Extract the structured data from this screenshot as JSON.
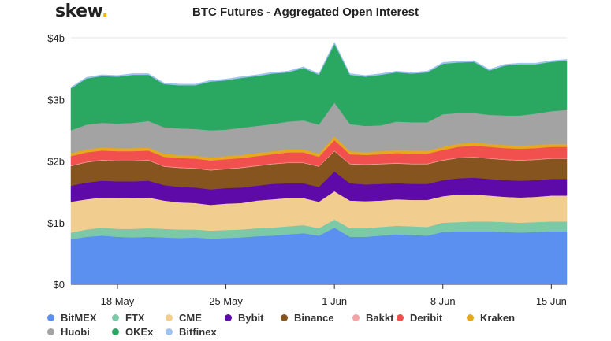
{
  "brand": {
    "name": "skew",
    "dot": "."
  },
  "chart_data": {
    "type": "area",
    "stacked": true,
    "title": "BTC Futures - Aggregated Open Interest",
    "xlabel": "",
    "ylabel": "",
    "ylim": [
      0,
      4
    ],
    "y_ticks": [
      {
        "value": 0,
        "label": "$0"
      },
      {
        "value": 1,
        "label": "$1b"
      },
      {
        "value": 2,
        "label": "$2b"
      },
      {
        "value": 3,
        "label": "$3b"
      },
      {
        "value": 4,
        "label": "$4b"
      }
    ],
    "x": [
      "2020-05-15",
      "2020-05-16",
      "2020-05-17",
      "2020-05-18",
      "2020-05-19",
      "2020-05-20",
      "2020-05-21",
      "2020-05-22",
      "2020-05-23",
      "2020-05-24",
      "2020-05-25",
      "2020-05-26",
      "2020-05-27",
      "2020-05-28",
      "2020-05-29",
      "2020-05-30",
      "2020-05-31",
      "2020-06-01",
      "2020-06-02",
      "2020-06-03",
      "2020-06-04",
      "2020-06-05",
      "2020-06-06",
      "2020-06-07",
      "2020-06-08",
      "2020-06-09",
      "2020-06-10",
      "2020-06-11",
      "2020-06-12",
      "2020-06-13",
      "2020-06-14",
      "2020-06-15",
      "2020-06-16"
    ],
    "x_ticks": [
      {
        "date": "2020-05-18",
        "label": "18 May"
      },
      {
        "date": "2020-05-25",
        "label": "25 May"
      },
      {
        "date": "2020-06-01",
        "label": "1 Jun"
      },
      {
        "date": "2020-06-08",
        "label": "8 Jun"
      },
      {
        "date": "2020-06-15",
        "label": "15 Jun"
      }
    ],
    "grid": true,
    "legend_position": "bottom",
    "series": [
      {
        "name": "BitMEX",
        "color": "#5b8ff0",
        "values": [
          0.73,
          0.77,
          0.79,
          0.77,
          0.76,
          0.77,
          0.76,
          0.75,
          0.76,
          0.74,
          0.75,
          0.76,
          0.78,
          0.79,
          0.81,
          0.83,
          0.79,
          0.92,
          0.77,
          0.77,
          0.79,
          0.81,
          0.8,
          0.79,
          0.85,
          0.86,
          0.86,
          0.86,
          0.85,
          0.84,
          0.85,
          0.86,
          0.86
        ]
      },
      {
        "name": "FTX",
        "color": "#7cc9a8",
        "values": [
          0.11,
          0.12,
          0.13,
          0.13,
          0.14,
          0.14,
          0.14,
          0.14,
          0.13,
          0.13,
          0.13,
          0.13,
          0.13,
          0.13,
          0.13,
          0.13,
          0.12,
          0.13,
          0.14,
          0.14,
          0.14,
          0.14,
          0.14,
          0.14,
          0.15,
          0.15,
          0.16,
          0.16,
          0.16,
          0.16,
          0.16,
          0.16,
          0.16
        ]
      },
      {
        "name": "CME",
        "color": "#f1cd8f",
        "values": [
          0.5,
          0.49,
          0.49,
          0.51,
          0.5,
          0.5,
          0.46,
          0.44,
          0.43,
          0.42,
          0.43,
          0.43,
          0.45,
          0.46,
          0.46,
          0.44,
          0.43,
          0.46,
          0.45,
          0.44,
          0.43,
          0.43,
          0.43,
          0.44,
          0.43,
          0.45,
          0.44,
          0.42,
          0.41,
          0.41,
          0.41,
          0.42,
          0.42
        ]
      },
      {
        "name": "Bybit",
        "color": "#5d0aa8",
        "values": [
          0.26,
          0.27,
          0.27,
          0.26,
          0.27,
          0.27,
          0.25,
          0.25,
          0.25,
          0.25,
          0.25,
          0.25,
          0.24,
          0.25,
          0.24,
          0.24,
          0.24,
          0.32,
          0.28,
          0.27,
          0.27,
          0.26,
          0.26,
          0.26,
          0.26,
          0.26,
          0.27,
          0.27,
          0.27,
          0.27,
          0.27,
          0.27,
          0.27
        ]
      },
      {
        "name": "Binance",
        "color": "#85541f",
        "values": [
          0.32,
          0.33,
          0.33,
          0.33,
          0.33,
          0.33,
          0.3,
          0.31,
          0.31,
          0.31,
          0.31,
          0.32,
          0.32,
          0.32,
          0.33,
          0.33,
          0.33,
          0.33,
          0.31,
          0.32,
          0.32,
          0.32,
          0.32,
          0.32,
          0.32,
          0.33,
          0.33,
          0.33,
          0.33,
          0.33,
          0.33,
          0.33,
          0.33
        ]
      },
      {
        "name": "Bakkt",
        "color": "#f2a3a6",
        "values": [
          0.01,
          0.01,
          0.01,
          0.01,
          0.01,
          0.01,
          0.01,
          0.01,
          0.01,
          0.01,
          0.01,
          0.01,
          0.01,
          0.01,
          0.01,
          0.01,
          0.01,
          0.01,
          0.01,
          0.01,
          0.01,
          0.01,
          0.01,
          0.01,
          0.01,
          0.01,
          0.01,
          0.01,
          0.01,
          0.01,
          0.01,
          0.01,
          0.01
        ]
      },
      {
        "name": "Deribit",
        "color": "#f2504e",
        "values": [
          0.15,
          0.15,
          0.15,
          0.15,
          0.15,
          0.15,
          0.15,
          0.15,
          0.15,
          0.15,
          0.15,
          0.15,
          0.15,
          0.15,
          0.16,
          0.16,
          0.15,
          0.17,
          0.15,
          0.15,
          0.15,
          0.16,
          0.16,
          0.16,
          0.16,
          0.17,
          0.18,
          0.18,
          0.18,
          0.18,
          0.18,
          0.18,
          0.18
        ]
      },
      {
        "name": "Kraken",
        "color": "#e6a81e",
        "values": [
          0.05,
          0.05,
          0.05,
          0.05,
          0.05,
          0.05,
          0.05,
          0.05,
          0.05,
          0.05,
          0.05,
          0.05,
          0.05,
          0.05,
          0.05,
          0.05,
          0.05,
          0.06,
          0.05,
          0.05,
          0.05,
          0.05,
          0.05,
          0.05,
          0.05,
          0.05,
          0.05,
          0.05,
          0.05,
          0.05,
          0.05,
          0.05,
          0.05
        ]
      },
      {
        "name": "Huobi",
        "color": "#a3a3a3",
        "values": [
          0.37,
          0.4,
          0.4,
          0.4,
          0.41,
          0.43,
          0.43,
          0.43,
          0.43,
          0.44,
          0.43,
          0.44,
          0.44,
          0.44,
          0.45,
          0.47,
          0.47,
          0.55,
          0.44,
          0.42,
          0.42,
          0.46,
          0.46,
          0.46,
          0.53,
          0.5,
          0.48,
          0.47,
          0.48,
          0.49,
          0.51,
          0.53,
          0.55
        ]
      },
      {
        "name": "OKEx",
        "color": "#2aa862",
        "values": [
          0.68,
          0.75,
          0.76,
          0.76,
          0.78,
          0.75,
          0.7,
          0.7,
          0.71,
          0.79,
          0.8,
          0.81,
          0.81,
          0.82,
          0.8,
          0.85,
          0.81,
          0.95,
          0.8,
          0.8,
          0.82,
          0.8,
          0.79,
          0.81,
          0.82,
          0.82,
          0.83,
          0.72,
          0.81,
          0.83,
          0.8,
          0.8,
          0.8
        ]
      },
      {
        "name": "Bitfinex",
        "color": "#9ec3f2",
        "values": [
          0.02,
          0.02,
          0.02,
          0.02,
          0.02,
          0.02,
          0.02,
          0.02,
          0.02,
          0.02,
          0.02,
          0.02,
          0.02,
          0.02,
          0.02,
          0.02,
          0.02,
          0.03,
          0.02,
          0.02,
          0.02,
          0.02,
          0.02,
          0.02,
          0.02,
          0.02,
          0.02,
          0.02,
          0.02,
          0.02,
          0.02,
          0.02,
          0.02
        ]
      }
    ]
  }
}
